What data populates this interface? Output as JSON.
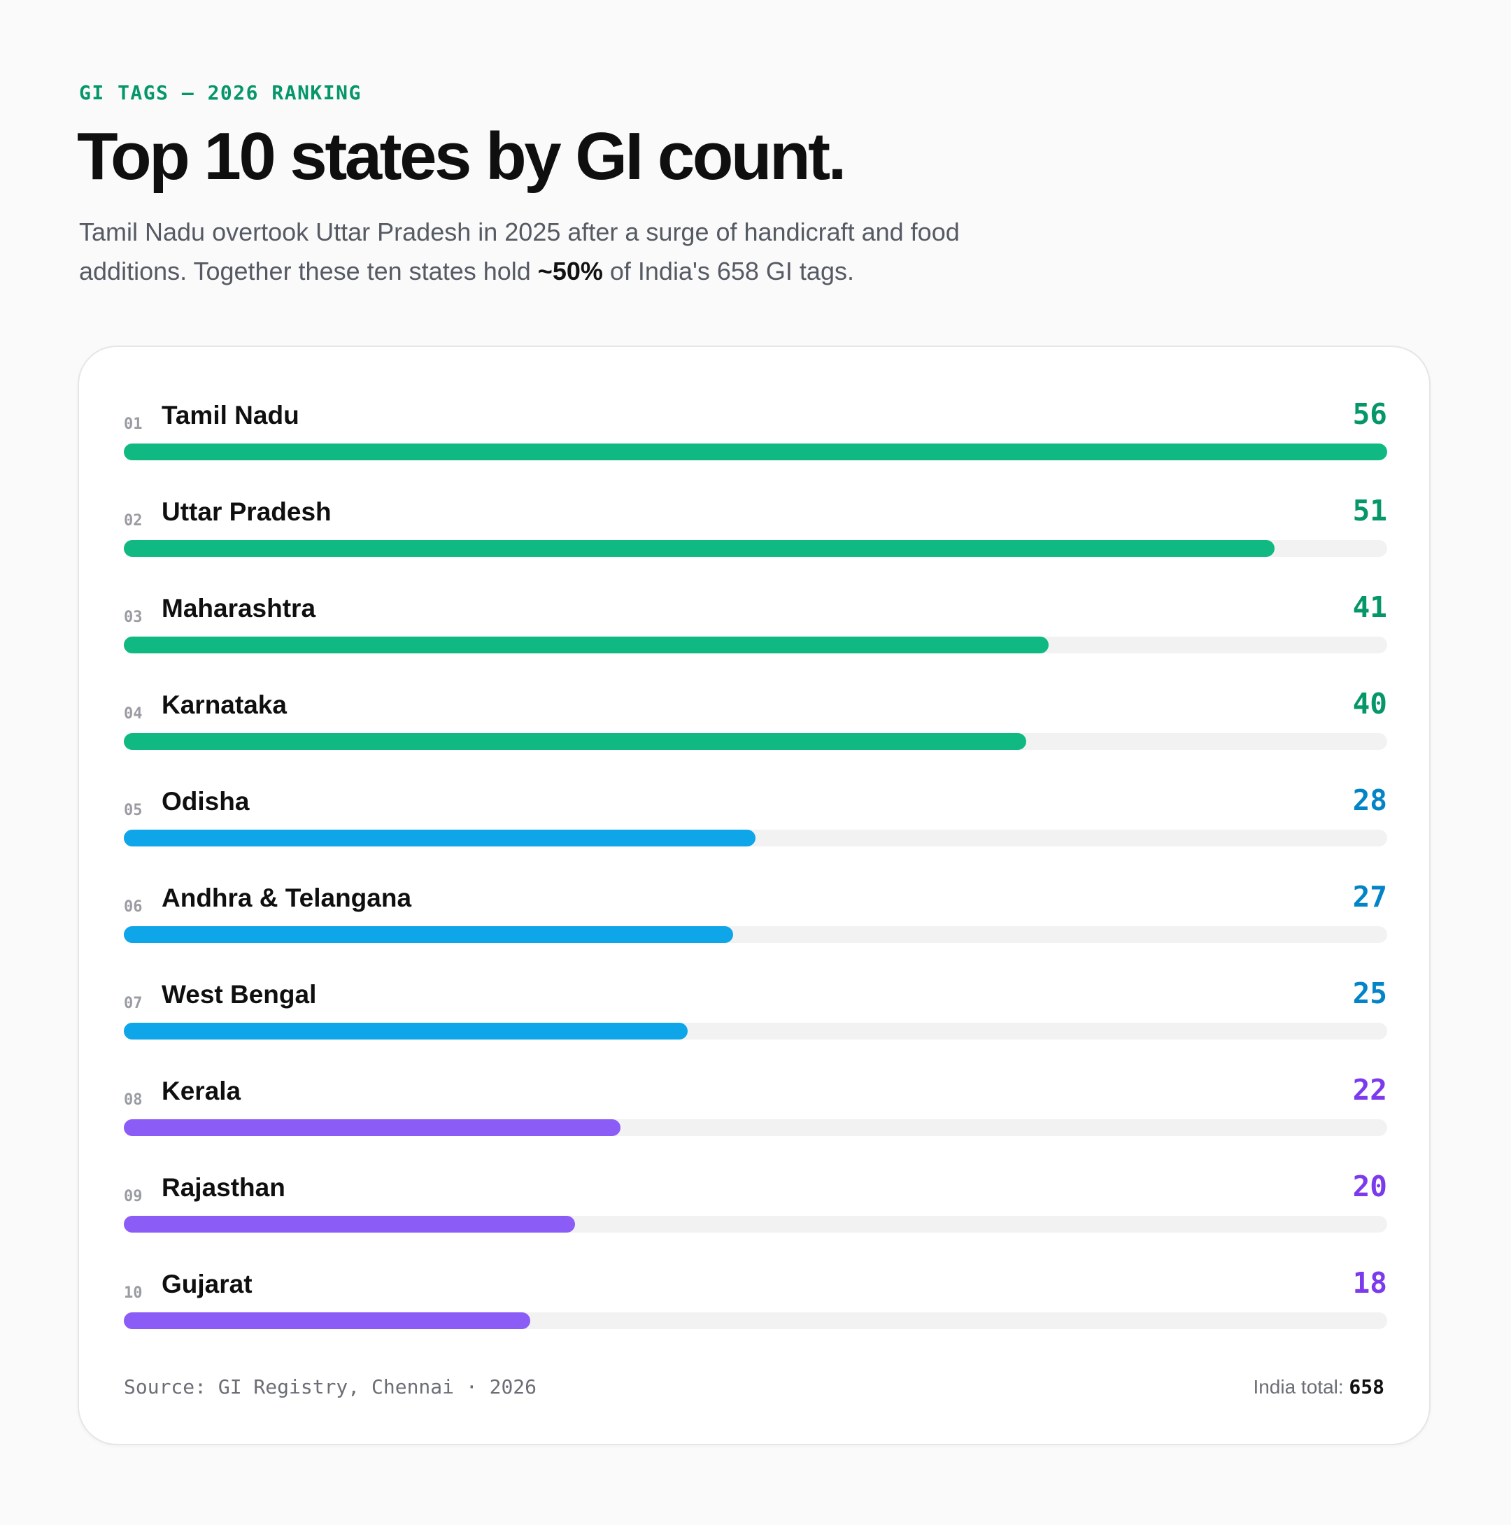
{
  "header": {
    "eyebrow": "GI TAGS — 2026 RANKING",
    "title": "Top 10 states by GI count.",
    "subtitle_part1": "Tamil Nadu overtook Uttar Pradesh in 2025 after a surge of handicraft and food additions. Together these ten states hold ",
    "subtitle_emphasis": "~50%",
    "subtitle_part2": " of India's 658 GI tags."
  },
  "footer": {
    "source": "Source: GI Registry, Chennai · 2026",
    "total_label": "India total:",
    "total_value": "658"
  },
  "colors": {
    "green_bar": "#10b981",
    "green_text": "#059669",
    "blue_bar": "#0ea5e9",
    "blue_text": "#0284c7",
    "purple_bar": "#8b5cf6",
    "purple_text": "#7c3aed",
    "track": "#f2f2f3"
  },
  "chart_data": {
    "type": "bar",
    "orientation": "horizontal",
    "max_value": 56,
    "rows": [
      {
        "rank": "01",
        "state": "Tamil Nadu",
        "value": 56,
        "tier": "green"
      },
      {
        "rank": "02",
        "state": "Uttar Pradesh",
        "value": 51,
        "tier": "green"
      },
      {
        "rank": "03",
        "state": "Maharashtra",
        "value": 41,
        "tier": "green"
      },
      {
        "rank": "04",
        "state": "Karnataka",
        "value": 40,
        "tier": "green"
      },
      {
        "rank": "05",
        "state": "Odisha",
        "value": 28,
        "tier": "blue"
      },
      {
        "rank": "06",
        "state": "Andhra & Telangana",
        "value": 27,
        "tier": "blue"
      },
      {
        "rank": "07",
        "state": "West Bengal",
        "value": 25,
        "tier": "blue"
      },
      {
        "rank": "08",
        "state": "Kerala",
        "value": 22,
        "tier": "purple"
      },
      {
        "rank": "09",
        "state": "Rajasthan",
        "value": 20,
        "tier": "purple"
      },
      {
        "rank": "10",
        "state": "Gujarat",
        "value": 18,
        "tier": "purple"
      }
    ]
  }
}
